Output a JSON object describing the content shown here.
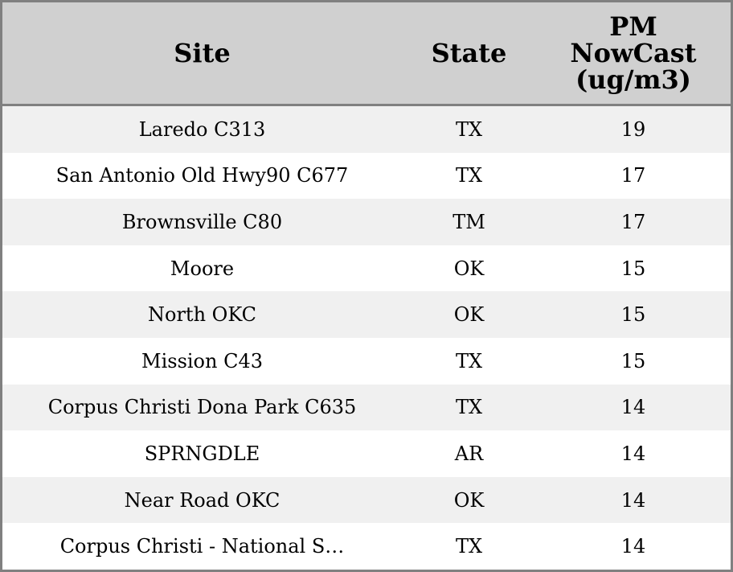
{
  "table": {
    "headers": [
      "Site",
      "State",
      "PM NowCast (ug/m3)"
    ],
    "header_lines": {
      "pm": [
        "PM",
        "NowCast",
        "(ug/m3)"
      ]
    },
    "rows": [
      [
        "Laredo C313",
        "TX",
        "19"
      ],
      [
        "San Antonio Old Hwy90 C677",
        "TX",
        "17"
      ],
      [
        "Brownsville C80",
        "TM",
        "17"
      ],
      [
        "Moore",
        "OK",
        "15"
      ],
      [
        "North OKC",
        "OK",
        "15"
      ],
      [
        "Mission C43",
        "TX",
        "15"
      ],
      [
        "Corpus Christi Dona Park C635",
        "TX",
        "14"
      ],
      [
        "SPRNGDLE",
        "AR",
        "14"
      ],
      [
        "Near Road OKC",
        "OK",
        "14"
      ],
      [
        "Corpus Christi - National S…",
        "TX",
        "14"
      ]
    ]
  },
  "colors": {
    "header_bg": "#d0d0d0",
    "stripe_bg": "#f0f0f0",
    "border": "#808080"
  }
}
